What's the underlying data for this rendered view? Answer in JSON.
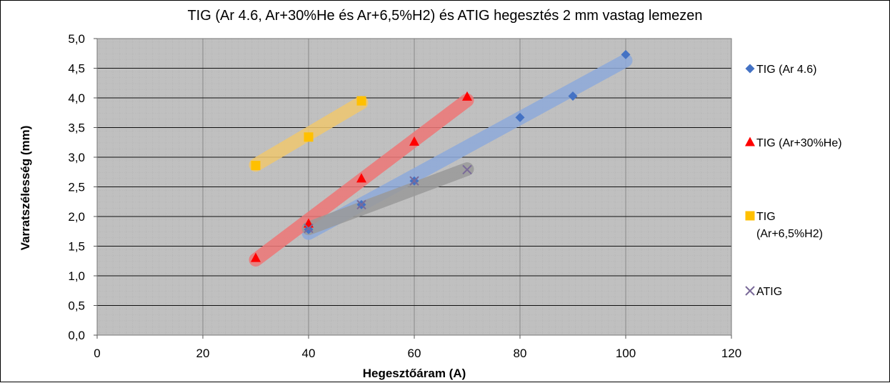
{
  "chart_data": {
    "type": "scatter",
    "title": "TIG  (Ar 4.6, Ar+30%He és Ar+6,5%H2) és ATIG  hegesztés 2 mm vastag lemezen",
    "xlabel": "Hegesztőáram (A)",
    "ylabel": "Varratszélesség (mm)",
    "xlim": [
      0,
      120
    ],
    "ylim": [
      0,
      5
    ],
    "x_ticks": [
      {
        "value": 0,
        "label": "0"
      },
      {
        "value": 20,
        "label": "20"
      },
      {
        "value": 40,
        "label": "40"
      },
      {
        "value": 60,
        "label": "60"
      },
      {
        "value": 80,
        "label": "80"
      },
      {
        "value": 100,
        "label": "100"
      },
      {
        "value": 120,
        "label": "120"
      }
    ],
    "y_ticks": [
      {
        "value": 0,
        "label": "0,0"
      },
      {
        "value": 0.5,
        "label": "0,5"
      },
      {
        "value": 1,
        "label": "1,0"
      },
      {
        "value": 1.5,
        "label": "1,5"
      },
      {
        "value": 2,
        "label": "2,0"
      },
      {
        "value": 2.5,
        "label": "2,5"
      },
      {
        "value": 3,
        "label": "3,0"
      },
      {
        "value": 3.5,
        "label": "3,5"
      },
      {
        "value": 4,
        "label": "4,0"
      },
      {
        "value": 4.5,
        "label": "4,5"
      },
      {
        "value": 5,
        "label": "5,0"
      }
    ],
    "grid": true,
    "legend_position": "right",
    "series": [
      {
        "name": "TIG (Ar 4.6)",
        "marker": "diamond",
        "color": "#4472c4",
        "band_color": "#8eaadb",
        "band": [
          [
            40,
            1.72
          ],
          [
            100,
            4.63
          ]
        ],
        "points": [
          {
            "x": 40,
            "y": 1.78
          },
          {
            "x": 50,
            "y": 2.2
          },
          {
            "x": 60,
            "y": 2.6
          },
          {
            "x": 80,
            "y": 3.67
          },
          {
            "x": 90,
            "y": 4.03
          },
          {
            "x": 100,
            "y": 4.73
          }
        ]
      },
      {
        "name": "TIG (Ar+30%He)",
        "marker": "triangle",
        "color": "#ff0000",
        "band_color": "#ee7777",
        "band": [
          [
            30,
            1.27
          ],
          [
            70,
            3.96
          ]
        ],
        "points": [
          {
            "x": 30,
            "y": 1.3
          },
          {
            "x": 40,
            "y": 1.88
          },
          {
            "x": 50,
            "y": 2.64
          },
          {
            "x": 60,
            "y": 3.26
          },
          {
            "x": 70,
            "y": 4.02
          }
        ]
      },
      {
        "name": "TIG",
        "name_line2": "(Ar+6,5%H2)",
        "marker": "square",
        "color": "#ffc000",
        "band_color": "#efc870",
        "band": [
          [
            30,
            2.87
          ],
          [
            50,
            3.92
          ]
        ],
        "points": [
          {
            "x": 30,
            "y": 2.86
          },
          {
            "x": 40,
            "y": 3.34
          },
          {
            "x": 50,
            "y": 3.95
          }
        ]
      },
      {
        "name": "ATIG",
        "marker": "x",
        "color": "#7a6a99",
        "band_color": "#9a9a9a",
        "band": [
          [
            40,
            1.8
          ],
          [
            70,
            2.8
          ]
        ],
        "points": [
          {
            "x": 40,
            "y": 1.8
          },
          {
            "x": 50,
            "y": 2.2
          },
          {
            "x": 60,
            "y": 2.6
          },
          {
            "x": 70,
            "y": 2.79
          }
        ]
      }
    ]
  }
}
